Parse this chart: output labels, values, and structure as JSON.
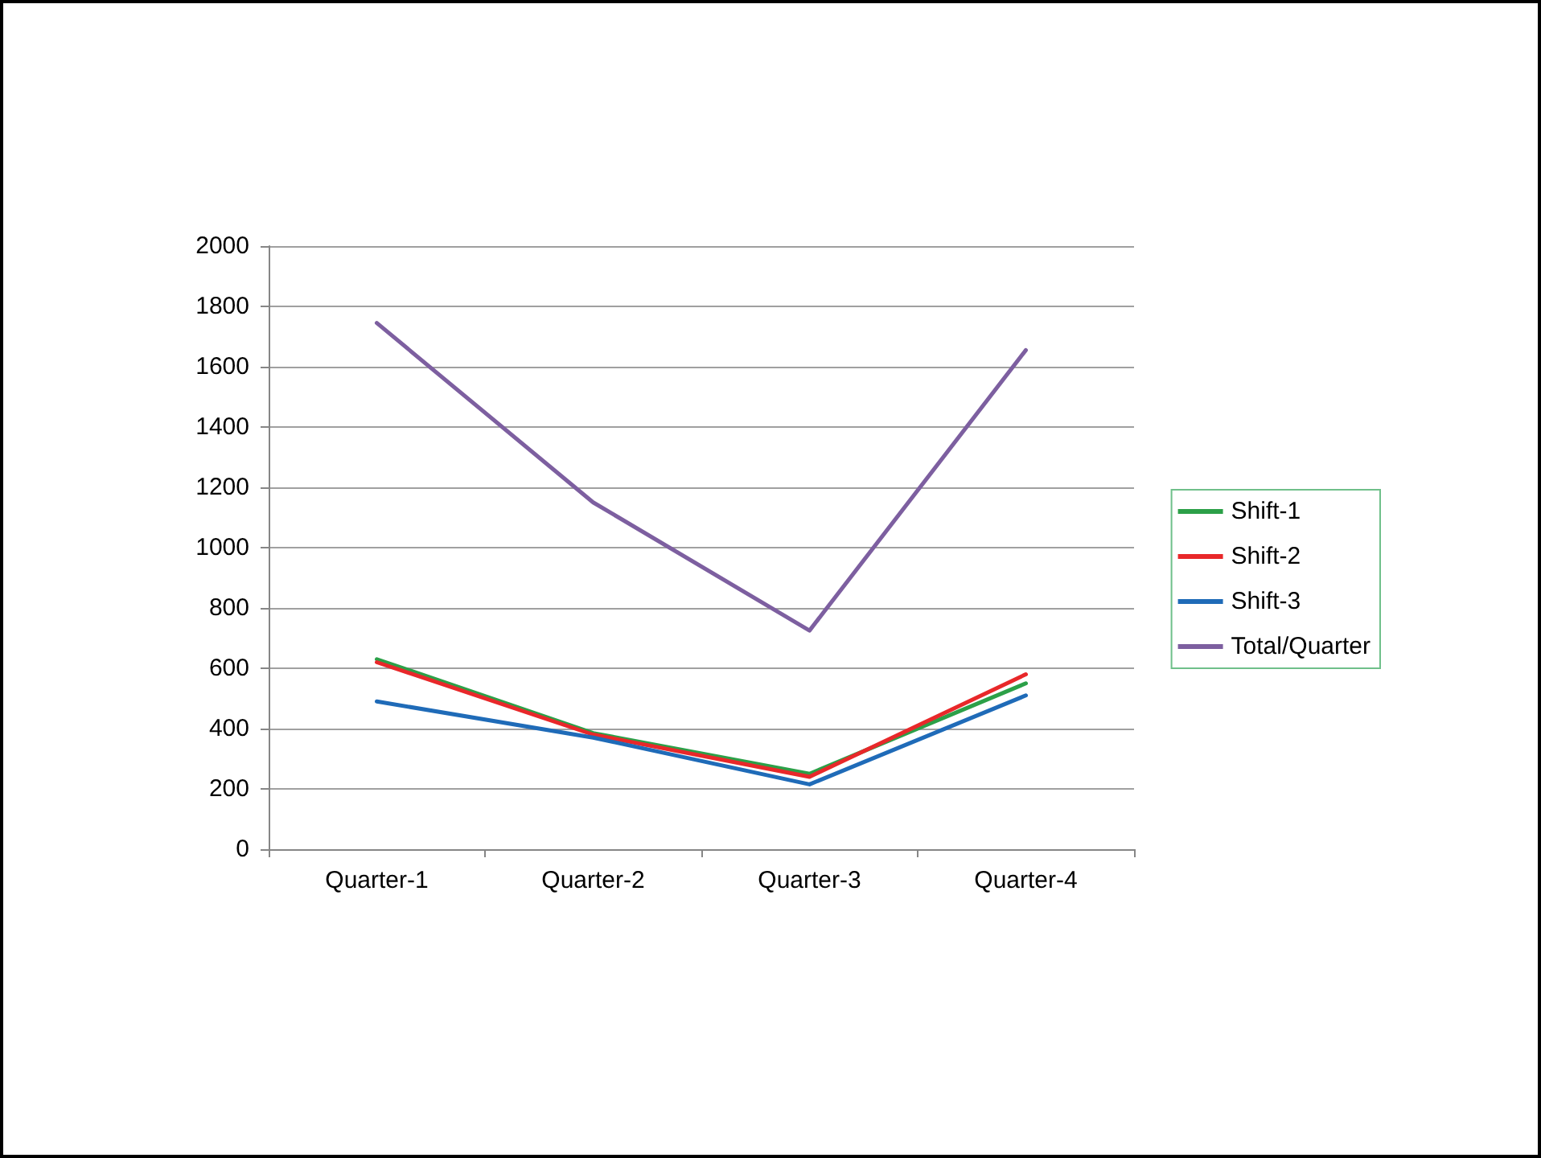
{
  "chart_data": {
    "type": "line",
    "categories": [
      "Quarter-1",
      "Quarter-2",
      "Quarter-3",
      "Quarter-4"
    ],
    "series": [
      {
        "name": "Shift-1",
        "color": "#2ca048",
        "values": [
          630,
          385,
          250,
          550
        ]
      },
      {
        "name": "Shift-2",
        "color": "#e8282a",
        "values": [
          620,
          380,
          240,
          580
        ]
      },
      {
        "name": "Shift-3",
        "color": "#1f6bb8",
        "values": [
          490,
          370,
          215,
          510
        ]
      },
      {
        "name": "Total/Quarter",
        "color": "#7d5fa0",
        "values": [
          1745,
          1150,
          725,
          1655
        ]
      }
    ],
    "ylim": [
      0,
      2000
    ],
    "yticks": [
      0,
      200,
      400,
      600,
      800,
      1000,
      1200,
      1400,
      1600,
      1800,
      2000
    ],
    "grid": "y",
    "legend": "right",
    "marker": "none",
    "line_style": "solid"
  }
}
